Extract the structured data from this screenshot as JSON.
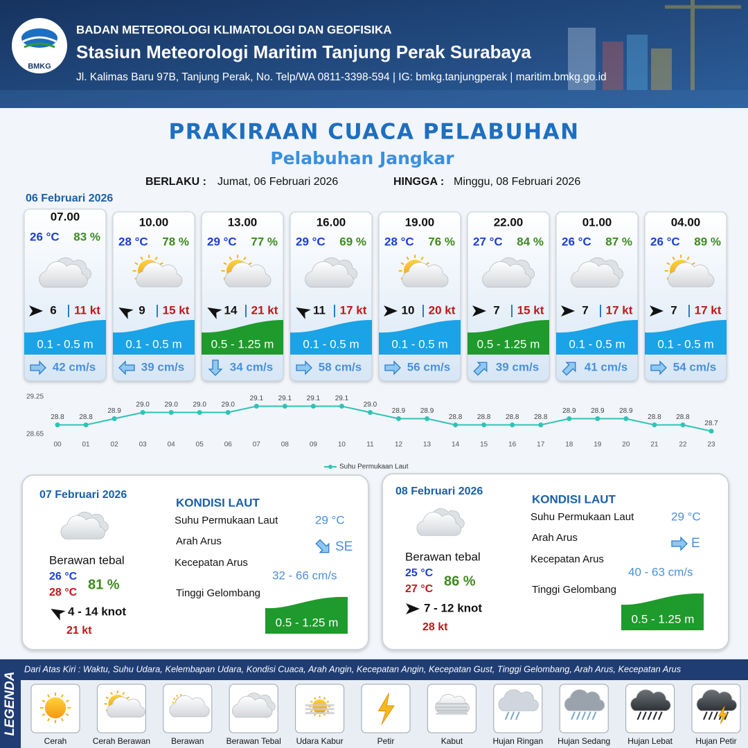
{
  "header": {
    "logo_text": "BMKG",
    "organization": "BADAN METEOROLOGI KLIMATOLOGI DAN GEOFISIKA",
    "station": "Stasiun Meteorologi Maritim Tanjung Perak Surabaya",
    "address": "Jl. Kalimas Baru 97B, Tanjung Perak, No. Telp/WA 0811-3398-594 | IG: bmkg.tanjungperak | maritim.bmkg.go.id"
  },
  "title": "PRAKIRAAN CUACA PELABUHAN",
  "subtitle": "Pelabuhan Jangkar",
  "validity": {
    "from_label": "BERLAKU :",
    "from": "Jumat, 06 Februari 2026",
    "to_label": "HINGGA :",
    "to": "Minggu, 08 Februari 2026"
  },
  "day_label": "06 Februari 2026",
  "cards": [
    {
      "time": "07.00",
      "temp": "26 °C",
      "humidity": "83 %",
      "icon": "berawan-tebal",
      "wind_rotation": 0,
      "wind": "6",
      "gust": "11 kt",
      "wave": "0.1 - 0.5 m",
      "wave_color": "#1aa3e6",
      "current_rotation": 0,
      "current": "42 cm/s"
    },
    {
      "time": "10.00",
      "temp": "28 °C",
      "humidity": "78 %",
      "icon": "cerah-berawan",
      "wind_rotation": 210,
      "wind": "9",
      "gust": "15 kt",
      "wave": "0.1 - 0.5 m",
      "wave_color": "#1aa3e6",
      "current_rotation": 180,
      "current": "39 cm/s"
    },
    {
      "time": "13.00",
      "temp": "29 °C",
      "humidity": "77 %",
      "icon": "cerah-berawan",
      "wind_rotation": 210,
      "wind": "14",
      "gust": "21 kt",
      "wave": "0.5 - 1.25 m",
      "wave_color": "#1f9a2c",
      "current_rotation": 90,
      "current": "34 cm/s"
    },
    {
      "time": "16.00",
      "temp": "29 °C",
      "humidity": "69 %",
      "icon": "berawan-tebal",
      "wind_rotation": 210,
      "wind": "11",
      "gust": "17 kt",
      "wave": "0.1 - 0.5 m",
      "wave_color": "#1aa3e6",
      "current_rotation": 0,
      "current": "58 cm/s"
    },
    {
      "time": "19.00",
      "temp": "28 °C",
      "humidity": "76 %",
      "icon": "cerah-berawan",
      "wind_rotation": 0,
      "wind": "10",
      "gust": "20 kt",
      "wave": "0.1 - 0.5 m",
      "wave_color": "#1aa3e6",
      "current_rotation": 0,
      "current": "56 cm/s"
    },
    {
      "time": "22.00",
      "temp": "27 °C",
      "humidity": "84 %",
      "icon": "berawan-tebal",
      "wind_rotation": 0,
      "wind": "7",
      "gust": "15 kt",
      "wave": "0.5 - 1.25 m",
      "wave_color": "#1f9a2c",
      "current_rotation": -45,
      "current": "39 cm/s"
    },
    {
      "time": "01.00",
      "temp": "26 °C",
      "humidity": "87 %",
      "icon": "berawan-tebal",
      "wind_rotation": 0,
      "wind": "7",
      "gust": "17 kt",
      "wave": "0.1 - 0.5 m",
      "wave_color": "#1aa3e6",
      "current_rotation": -45,
      "current": "41 cm/s"
    },
    {
      "time": "04.00",
      "temp": "26 °C",
      "humidity": "89 %",
      "icon": "cerah-berawan",
      "wind_rotation": 0,
      "wind": "7",
      "gust": "17 kt",
      "wave": "0.1 - 0.5 m",
      "wave_color": "#1aa3e6",
      "current_rotation": 0,
      "current": "54 cm/s"
    }
  ],
  "chart_data": {
    "type": "line",
    "categories": [
      "00",
      "01",
      "02",
      "03",
      "04",
      "05",
      "06",
      "07",
      "08",
      "09",
      "10",
      "11",
      "12",
      "13",
      "14",
      "15",
      "16",
      "17",
      "18",
      "19",
      "20",
      "21",
      "22",
      "23"
    ],
    "series": [
      {
        "name": "Suhu Permukaan Laut",
        "color": "#2ec4b6",
        "values": [
          28.8,
          28.8,
          28.9,
          29.0,
          29.0,
          29.0,
          29.0,
          29.1,
          29.1,
          29.1,
          29.1,
          29.0,
          28.9,
          28.9,
          28.8,
          28.8,
          28.8,
          28.8,
          28.9,
          28.9,
          28.9,
          28.8,
          28.8,
          28.7
        ],
        "value_labels": [
          "28.8",
          "28.8",
          "28.9",
          "29.0",
          "29.0",
          "29.0",
          "29.0",
          "29.1",
          "29.1",
          "29.1",
          "29.1",
          "29.0",
          "28.9",
          "28.9",
          "28.8",
          "28.8",
          "28.8",
          "28.8",
          "28.9",
          "28.9",
          "28.9",
          "28.8",
          "28.8",
          "28.7"
        ]
      }
    ],
    "ylim": [
      28.65,
      29.25
    ],
    "yticks": [
      28.65,
      29.25
    ],
    "grid": false,
    "legend": "bottom"
  },
  "panels": [
    {
      "date": "07 Februari 2026",
      "icon": "berawan-tebal",
      "weather": "Berawan tebal",
      "temp_min": "26 °C",
      "temp_max": "28 °C",
      "humidity": "81 %",
      "wind_rotation": 210,
      "wind": "4  - 14 knot",
      "gust": "21 kt",
      "sea_title": "KONDISI LAUT",
      "sst_label": "Suhu Permukaan Laut",
      "sst": "29 °C",
      "dir_label": "Arah Arus",
      "current_rotation": 45,
      "direction": "SE",
      "speed_label": "Kecepatan Arus",
      "speed": "32  - 66 cm/s",
      "wave_label": "Tinggi Gelombang",
      "wave": "0.5 - 1.25 m",
      "wave_color": "#1f9a2c"
    },
    {
      "date": "08 Februari 2026",
      "icon": "berawan-tebal",
      "weather": "Berawan tebal",
      "temp_min": "25 °C",
      "temp_max": "27 °C",
      "humidity": "86 %",
      "wind_rotation": 0,
      "wind": "7  - 12 knot",
      "gust": "28 kt",
      "sea_title": "KONDISI LAUT",
      "sst_label": "Suhu Permukaan Laut",
      "sst": "29 °C",
      "dir_label": "Arah Arus",
      "current_rotation": 0,
      "direction": "E",
      "speed_label": "Kecepatan Arus",
      "speed": "40 - 63 cm/s",
      "wave_label": "Tinggi Gelombang",
      "wave": "0.5 - 1.25 m",
      "wave_color": "#1f9a2c"
    }
  ],
  "legend": {
    "title": "LEGENDA",
    "description": "Dari Atas Kiri : Waktu, Suhu Udara, Kelembapan Udara, Kondisi Cuaca, Arah Angin, Kecepatan Angin, Kecepatan Gust, Tinggi Gelombang, Arah Arus, Kecepatan Arus",
    "items": [
      {
        "icon": "cerah",
        "label": "Cerah"
      },
      {
        "icon": "cerah-berawan",
        "label": "Cerah Berawan"
      },
      {
        "icon": "berawan",
        "label": "Berawan"
      },
      {
        "icon": "berawan-tebal",
        "label": "Berawan Tebal"
      },
      {
        "icon": "udara-kabur",
        "label": "Udara Kabur"
      },
      {
        "icon": "petir",
        "label": "Petir"
      },
      {
        "icon": "kabut",
        "label": "Kabut"
      },
      {
        "icon": "hujan-ringan",
        "label": "Hujan Ringan"
      },
      {
        "icon": "hujan-sedang",
        "label": "Hujan Sedang"
      },
      {
        "icon": "hujan-lebat",
        "label": "Hujan Lebat"
      },
      {
        "icon": "hujan-petir",
        "label": "Hujan Petir"
      }
    ]
  }
}
